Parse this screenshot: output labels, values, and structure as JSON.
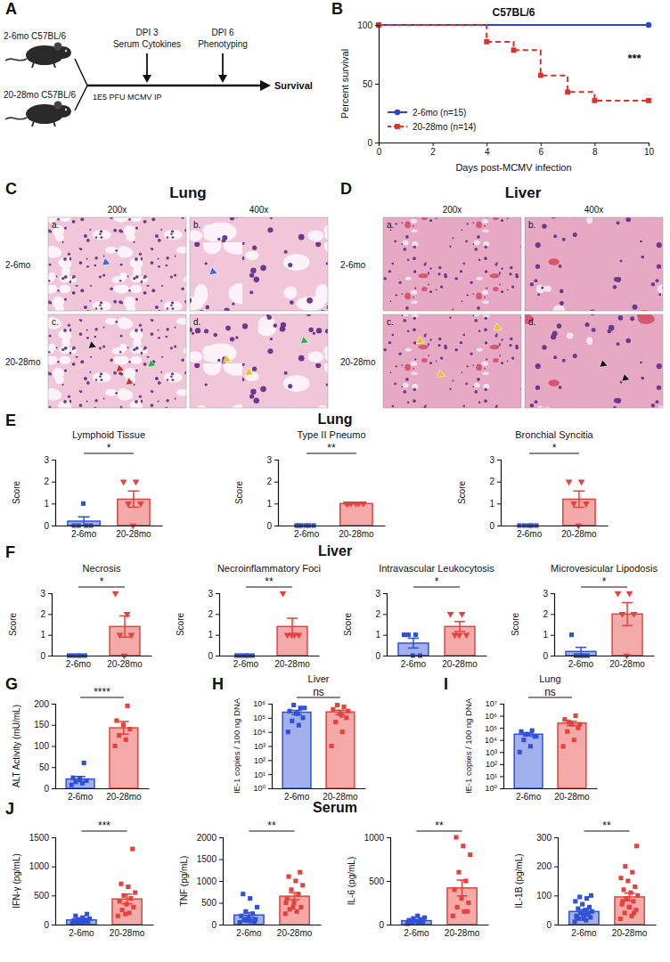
{
  "schematic": {
    "panel": "A",
    "groups": [
      "2-6mo C57BL/6",
      "20-28mo C57BL/6"
    ],
    "infection": "1E5 PFU MCMV IP",
    "timepoints": [
      {
        "label": "DPI 3",
        "detail": "Serum Cytokines"
      },
      {
        "label": "DPI 6",
        "detail": "Phenotyping"
      }
    ],
    "endpoint": "Survival"
  },
  "histology": [
    {
      "panel": "C",
      "title": "Lung",
      "columns": [
        "200x",
        "400x"
      ],
      "rows": [
        "2-6mo",
        "20-28mo"
      ],
      "tiles": [
        "a.",
        "b.",
        "c.",
        "d."
      ]
    },
    {
      "panel": "D",
      "title": "Liver",
      "columns": [
        "200x",
        "400x"
      ],
      "rows": [
        "2-6mo",
        "20-28mo"
      ],
      "tiles": [
        "a.",
        "b.",
        "c.",
        "d."
      ]
    }
  ],
  "chart_data": [
    {
      "type": "step",
      "panel": "B",
      "title": "C57BL/6",
      "xlabel": "Days post-MCMV infection",
      "ylabel": "Percent survival",
      "xlim": [
        0,
        10
      ],
      "xticks": [
        0,
        2,
        4,
        6,
        8,
        10
      ],
      "ylim": [
        0,
        100
      ],
      "yticks": [
        0,
        50,
        100
      ],
      "legend": "bottom-left",
      "annotation": "***",
      "series": [
        {
          "name": "2-6mo (n=15)",
          "color": "#2b44d6",
          "marker": "circle",
          "line_style": "solid",
          "x": [
            0,
            10
          ],
          "values": [
            100,
            100
          ]
        },
        {
          "name": "20-28mo (n=14)",
          "color": "#e0302b",
          "marker": "square",
          "line_style": "dashed",
          "x": [
            0,
            4,
            5,
            6,
            7,
            8,
            10
          ],
          "values": [
            100,
            85.7,
            78.6,
            57.1,
            42.9,
            35.7,
            35.7
          ]
        }
      ]
    },
    {
      "type": "bar",
      "panel": "E",
      "group_title": "Lung",
      "title": "Lymphoid Tissue",
      "ylabel": "Score",
      "categories": [
        "2-6mo",
        "20-28mo"
      ],
      "values": [
        0.2,
        1.2
      ],
      "errors": [
        0.2,
        0.37
      ],
      "colors": [
        "#3050d8",
        "#e5413d"
      ],
      "points": [
        {
          "marker": "square",
          "values": [
            0,
            0,
            0,
            0,
            1
          ]
        },
        {
          "marker": "triangle-down",
          "values": [
            2,
            2,
            1,
            1,
            0
          ]
        }
      ],
      "ylim": [
        0,
        3
      ],
      "yticks": [
        0,
        1,
        2,
        3
      ],
      "annotation": "*"
    },
    {
      "type": "bar",
      "title": "Type II Pneumo",
      "ylabel": "Score",
      "categories": [
        "2-6mo",
        "20-28mo"
      ],
      "values": [
        0,
        1
      ],
      "errors": [
        0,
        0
      ],
      "colors": [
        "#3050d8",
        "#e5413d"
      ],
      "points": [
        {
          "marker": "square",
          "values": [
            0,
            0,
            0,
            0,
            0,
            0
          ]
        },
        {
          "marker": "triangle-down",
          "values": [
            1,
            1,
            1,
            1,
            1,
            1
          ]
        }
      ],
      "ylim": [
        0,
        3
      ],
      "yticks": [
        0,
        1,
        2,
        3
      ],
      "annotation": "**"
    },
    {
      "type": "bar",
      "title": "Bronchial Syncitia",
      "ylabel": "Score",
      "categories": [
        "2-6mo",
        "20-28mo"
      ],
      "values": [
        0,
        1.2
      ],
      "errors": [
        0,
        0.37
      ],
      "colors": [
        "#3050d8",
        "#e5413d"
      ],
      "points": [
        {
          "marker": "square",
          "values": [
            0,
            0,
            0,
            0,
            0
          ]
        },
        {
          "marker": "triangle-down",
          "values": [
            2,
            2,
            1,
            1,
            0
          ]
        }
      ],
      "ylim": [
        0,
        3
      ],
      "yticks": [
        0,
        1,
        2,
        3
      ],
      "annotation": "*"
    },
    {
      "type": "bar",
      "panel": "F",
      "group_title": "Liver",
      "title": "Necrosis",
      "ylabel": "Score",
      "categories": [
        "2-6mo",
        "20-28mo"
      ],
      "values": [
        0,
        1.4
      ],
      "errors": [
        0,
        0.51
      ],
      "colors": [
        "#3050d8",
        "#e5413d"
      ],
      "points": [
        {
          "marker": "square",
          "values": [
            0,
            0,
            0,
            0,
            0
          ]
        },
        {
          "marker": "triangle-down",
          "values": [
            3,
            2,
            1,
            1,
            0
          ]
        }
      ],
      "ylim": [
        0,
        3
      ],
      "yticks": [
        0,
        1,
        2,
        3
      ],
      "annotation": "*"
    },
    {
      "type": "bar",
      "title": "Necroinflammatory Foci",
      "ylabel": "Score",
      "categories": [
        "2-6mo",
        "20-28mo"
      ],
      "values": [
        0,
        1.4
      ],
      "errors": [
        0,
        0.4
      ],
      "colors": [
        "#3050d8",
        "#e5413d"
      ],
      "points": [
        {
          "marker": "square",
          "values": [
            0,
            0,
            0,
            0,
            0
          ]
        },
        {
          "marker": "triangle-down",
          "values": [
            3,
            1,
            1,
            1,
            1
          ]
        }
      ],
      "ylim": [
        0,
        3
      ],
      "yticks": [
        0,
        1,
        2,
        3
      ],
      "annotation": "**"
    },
    {
      "type": "bar",
      "title": "Intravascular Leukocytosis",
      "ylabel": "Score",
      "categories": [
        "2-6mo",
        "20-28mo"
      ],
      "values": [
        0.6,
        1.4
      ],
      "errors": [
        0.24,
        0.24
      ],
      "colors": [
        "#3050d8",
        "#e5413d"
      ],
      "points": [
        {
          "marker": "square",
          "values": [
            1,
            1,
            1,
            0,
            0
          ]
        },
        {
          "marker": "triangle-down",
          "values": [
            2,
            2,
            1,
            1,
            1
          ]
        }
      ],
      "ylim": [
        0,
        3
      ],
      "yticks": [
        0,
        1,
        2,
        3
      ],
      "annotation": "*"
    },
    {
      "type": "bar",
      "title": "Microvesicular Lipodosis",
      "ylabel": "Score",
      "categories": [
        "2-6mo",
        "20-28mo"
      ],
      "values": [
        0.2,
        2
      ],
      "errors": [
        0.2,
        0.55
      ],
      "colors": [
        "#3050d8",
        "#e5413d"
      ],
      "points": [
        {
          "marker": "square",
          "values": [
            1,
            0,
            0,
            0,
            0
          ]
        },
        {
          "marker": "triangle-down",
          "values": [
            3,
            3,
            2,
            2,
            0
          ]
        }
      ],
      "ylim": [
        0,
        3
      ],
      "yticks": [
        0,
        1,
        2,
        3
      ],
      "annotation": "*"
    },
    {
      "type": "bar",
      "panel": "G",
      "ylabel": "ALT Activity (mU/mL)",
      "categories": [
        "2-6mo",
        "20-28mo"
      ],
      "values": [
        22,
        143
      ],
      "errors": [
        6,
        15
      ],
      "colors": [
        "#3050d8",
        "#e5413d"
      ],
      "points": [
        {
          "marker": "square",
          "values": [
            8,
            12,
            15,
            18,
            22,
            25,
            60
          ]
        },
        {
          "marker": "square",
          "values": [
            100,
            115,
            125,
            140,
            150,
            160,
            195
          ]
        }
      ],
      "ylim": [
        0,
        200
      ],
      "yticks": [
        0,
        50,
        100,
        150,
        200
      ],
      "annotation": "****"
    },
    {
      "type": "bar",
      "panel": "H",
      "title": "Liver",
      "ylabel": "IE-1 copies / 100 ng DNA",
      "log": "y",
      "categories": [
        "2-6mo",
        "20-28mo"
      ],
      "values": [
        250000,
        260000
      ],
      "errors": [
        80000,
        90000
      ],
      "colors": [
        "#3050d8",
        "#e5413d"
      ],
      "points": [
        {
          "marker": "square",
          "values": [
            10000,
            30000,
            60000,
            100000,
            200000,
            300000,
            500000,
            800000,
            500000,
            200000
          ]
        },
        {
          "marker": "square",
          "values": [
            1000,
            10000,
            50000,
            100000,
            200000,
            400000,
            600000,
            800000,
            300000,
            150000
          ]
        }
      ],
      "ylim": [
        1,
        1000000
      ],
      "yticks": [
        {
          "value": 1,
          "label": "10⁰"
        },
        {
          "value": 10,
          "label": "10¹"
        },
        {
          "value": 100,
          "label": "10²"
        },
        {
          "value": 1000,
          "label": "10³"
        },
        {
          "value": 10000,
          "label": "10⁴"
        },
        {
          "value": 100000,
          "label": "10⁵"
        },
        {
          "value": 1000000,
          "label": "10⁶"
        }
      ],
      "annotation": "ns"
    },
    {
      "type": "bar",
      "panel": "I",
      "title": "Lung",
      "ylabel": "IE-1 copies / 100 ng DNA",
      "log": "y",
      "categories": [
        "2-6mo",
        "20-28mo"
      ],
      "values": [
        30000,
        250000
      ],
      "errors": [
        8000,
        100000
      ],
      "colors": [
        "#3050d8",
        "#e5413d"
      ],
      "points": [
        {
          "marker": "square",
          "values": [
            1000,
            3000,
            10000,
            20000,
            30000,
            50000,
            60000,
            30000,
            20000
          ]
        },
        {
          "marker": "square",
          "values": [
            3000,
            10000,
            50000,
            100000,
            200000,
            500000,
            1000000,
            300000,
            200000
          ]
        }
      ],
      "ylim": [
        1,
        10000000
      ],
      "yticks": [
        {
          "value": 1,
          "label": "10⁰"
        },
        {
          "value": 10,
          "label": "10¹"
        },
        {
          "value": 100,
          "label": "10²"
        },
        {
          "value": 1000,
          "label": "10³"
        },
        {
          "value": 10000,
          "label": "10⁴"
        },
        {
          "value": 100000,
          "label": "10⁵"
        },
        {
          "value": 1000000,
          "label": "10⁶"
        },
        {
          "value": 10000000,
          "label": "10⁷"
        }
      ],
      "annotation": "ns"
    },
    {
      "type": "bar",
      "panel": "J",
      "group_title": "Serum",
      "ylabel": "IFN-γ (pg/mL)",
      "categories": [
        "2-6mo",
        "20-28mo"
      ],
      "values": [
        80,
        440
      ],
      "errors": [
        13,
        85
      ],
      "colors": [
        "#3050d8",
        "#e5413d"
      ],
      "points": [
        {
          "marker": "square",
          "values": [
            20,
            30,
            40,
            50,
            60,
            70,
            80,
            90,
            100,
            120,
            150,
            180,
            40
          ]
        },
        {
          "marker": "square",
          "values": [
            150,
            200,
            250,
            300,
            350,
            400,
            450,
            500,
            550,
            650,
            700,
            1300,
            180
          ]
        }
      ],
      "ylim": [
        0,
        1500
      ],
      "yticks": [
        0,
        500,
        1000,
        1500
      ],
      "annotation": "***"
    },
    {
      "type": "bar",
      "ylabel": "TNF (pg/mL)",
      "categories": [
        "2-6mo",
        "20-28mo"
      ],
      "values": [
        220,
        650
      ],
      "errors": [
        55,
        80
      ],
      "colors": [
        "#3050d8",
        "#e5413d"
      ],
      "points": [
        {
          "marker": "square",
          "values": [
            50,
            80,
            100,
            120,
            150,
            200,
            250,
            300,
            400,
            600,
            700,
            60,
            90
          ]
        },
        {
          "marker": "square",
          "values": [
            250,
            300,
            350,
            400,
            500,
            600,
            700,
            800,
            900,
            1000,
            1100,
            1200,
            400,
            500
          ]
        }
      ],
      "ylim": [
        0,
        2000
      ],
      "yticks": [
        0,
        500,
        1000,
        1500,
        2000
      ],
      "annotation": "**"
    },
    {
      "type": "bar",
      "ylabel": "IL-6 (pg/mL)",
      "categories": [
        "2-6mo",
        "20-28mo"
      ],
      "values": [
        45,
        420
      ],
      "errors": [
        8,
        90
      ],
      "colors": [
        "#3050d8",
        "#e5413d"
      ],
      "points": [
        {
          "marker": "square",
          "values": [
            10,
            20,
            25,
            30,
            40,
            50,
            60,
            70,
            80,
            100,
            20,
            30
          ]
        },
        {
          "marker": "square",
          "values": [
            100,
            150,
            200,
            250,
            300,
            400,
            500,
            600,
            800,
            900,
            1000,
            150
          ]
        }
      ],
      "ylim": [
        0,
        1000
      ],
      "yticks": [
        0,
        500,
        1000
      ],
      "annotation": "**"
    },
    {
      "type": "bar",
      "ylabel": "IL-1B (pg/mL)",
      "categories": [
        "2-6mo",
        "20-28mo"
      ],
      "values": [
        45,
        95
      ],
      "errors": [
        6,
        13
      ],
      "colors": [
        "#3050d8",
        "#e5413d"
      ],
      "points": [
        {
          "marker": "square",
          "values": [
            10,
            15,
            20,
            25,
            30,
            30,
            35,
            40,
            45,
            50,
            55,
            60,
            70,
            80,
            90,
            95,
            100,
            20,
            25,
            40
          ]
        },
        {
          "marker": "square",
          "values": [
            20,
            30,
            40,
            50,
            60,
            70,
            80,
            90,
            100,
            110,
            120,
            130,
            150,
            160,
            180,
            200,
            270,
            60,
            80,
            40
          ]
        }
      ],
      "ylim": [
        0,
        300
      ],
      "yticks": [
        0,
        100,
        200,
        300
      ],
      "annotation": "**"
    }
  ]
}
